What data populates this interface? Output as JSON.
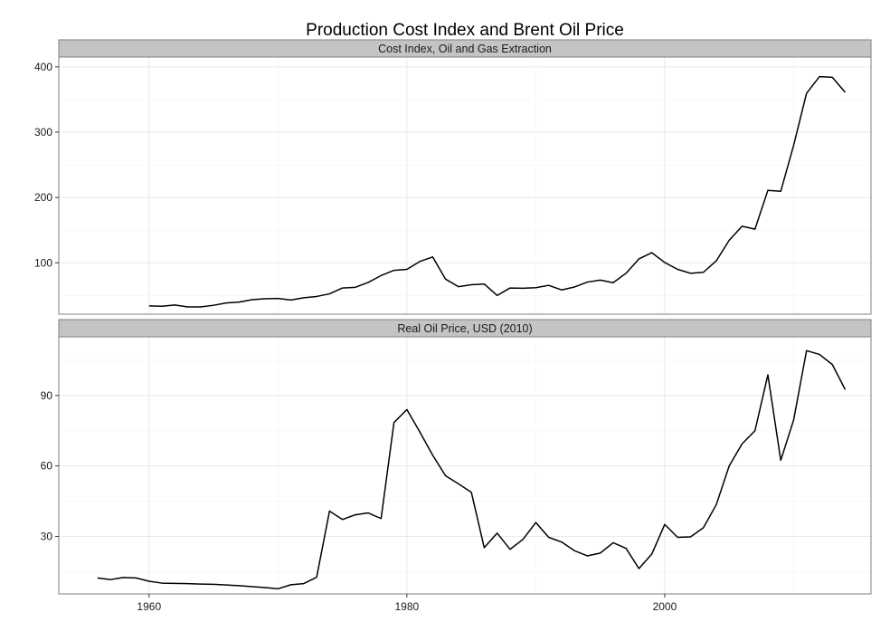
{
  "chart_data": {
    "type": "line",
    "title": "Production Cost Index and Brent Oil Price",
    "xlabel": "",
    "ylabel": "",
    "xlim": [
      1953,
      2016
    ],
    "x_ticks": [
      1960,
      1980,
      2000
    ],
    "grid": true,
    "panels": [
      {
        "strip": "Cost Index, Oil and Gas Extraction",
        "ylim": [
          21.4,
          415
        ],
        "y_ticks": [
          100,
          200,
          300,
          400
        ],
        "x": [
          1960,
          1961,
          1962,
          1963,
          1964,
          1965,
          1966,
          1967,
          1968,
          1969,
          1970,
          1971,
          1972,
          1973,
          1974,
          1975,
          1976,
          1977,
          1978,
          1979,
          1980,
          1981,
          1982,
          1983,
          1984,
          1985,
          1986,
          1987,
          1988,
          1989,
          1990,
          1991,
          1992,
          1993,
          1994,
          1995,
          1996,
          1997,
          1998,
          1999,
          2000,
          2001,
          2002,
          2003,
          2004,
          2005,
          2006,
          2007,
          2008,
          2009,
          2010,
          2011,
          2012,
          2013,
          2014
        ],
        "y": [
          34,
          33.5,
          35.5,
          32.5,
          32.5,
          35,
          38.5,
          40,
          43.5,
          45,
          45.5,
          43,
          46.5,
          48.5,
          52.5,
          61.5,
          62.5,
          70,
          80.5,
          88.5,
          90,
          102,
          109,
          75,
          63.5,
          66.5,
          67.5,
          50,
          61.5,
          61,
          62,
          65.5,
          58.5,
          63,
          70.5,
          73.5,
          69.5,
          84,
          106,
          115.5,
          100.5,
          90,
          84,
          85.5,
          103,
          134.5,
          156,
          151.5,
          211,
          209.5,
          280,
          359.5,
          385,
          384,
          361
        ]
      },
      {
        "strip": "Real Oil Price, USD (2010)",
        "ylim": [
          5.5,
          115
        ],
        "y_ticks": [
          30,
          60,
          90
        ],
        "x": [
          1956,
          1957,
          1958,
          1959,
          1960,
          1961,
          1962,
          1963,
          1964,
          1965,
          1966,
          1967,
          1968,
          1969,
          1970,
          1971,
          1972,
          1973,
          1974,
          1975,
          1976,
          1977,
          1978,
          1979,
          1980,
          1981,
          1982,
          1983,
          1984,
          1985,
          1986,
          1987,
          1988,
          1989,
          1990,
          1991,
          1992,
          1993,
          1994,
          1995,
          1996,
          1997,
          1998,
          1999,
          2000,
          2001,
          2002,
          2003,
          2004,
          2005,
          2006,
          2007,
          2008,
          2009,
          2010,
          2011,
          2012,
          2013,
          2014
        ],
        "y": [
          12.3,
          11.6,
          12.5,
          12.3,
          10.9,
          10.1,
          10,
          9.9,
          9.7,
          9.6,
          9.3,
          9,
          8.6,
          8.2,
          7.7,
          9.4,
          9.9,
          12.6,
          40.8,
          37.2,
          39.2,
          40,
          37.6,
          78.5,
          84,
          74.5,
          64.6,
          55.8,
          52.4,
          48.8,
          25.2,
          31.4,
          24.5,
          28.7,
          35.9,
          29.6,
          27.6,
          23.9,
          21.7,
          22.9,
          27.3,
          24.9,
          16.3,
          22.5,
          35.1,
          29.6,
          29.8,
          33.7,
          43.5,
          60,
          69.4,
          75,
          98.8,
          62.4,
          79.6,
          109.1,
          107.5,
          103.2,
          92.5
        ]
      }
    ]
  }
}
